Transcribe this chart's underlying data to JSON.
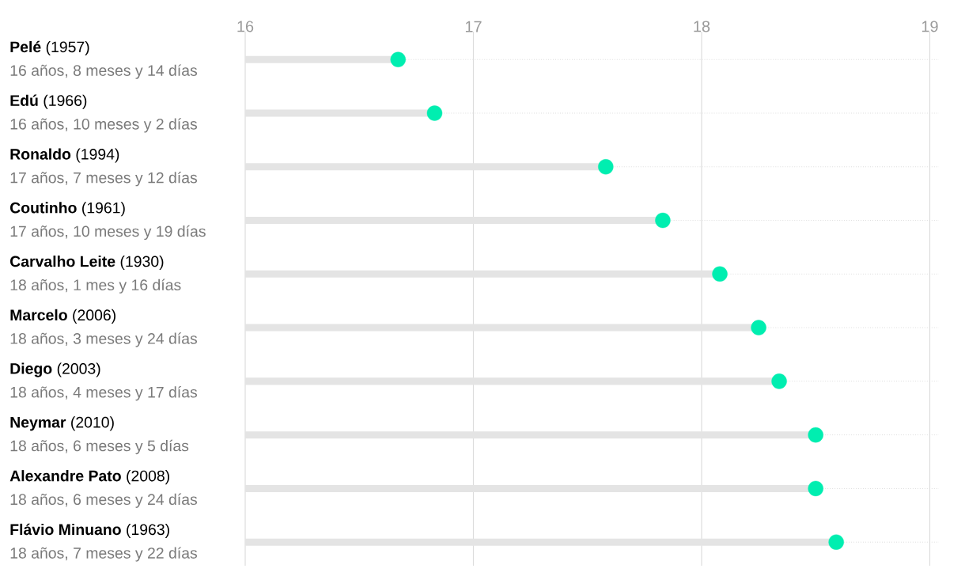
{
  "chart_data": {
    "type": "lollipop",
    "orientation": "horizontal",
    "categories": [
      "**Pelé** (1957)",
      "**Edú** (1966)",
      "**Ronaldo** (1994)",
      "**Coutinho** (1961)",
      "**Carvalho Leite** (1930)",
      "**Marcelo** (2006)",
      "**Diego** (2003)",
      "**Neymar** (2010)",
      "**Alexandre Pato** (2008)",
      "**Flávio Minuano** (1963)"
    ],
    "values": [
      16.67,
      16.83,
      17.58,
      17.83,
      18.08,
      18.25,
      18.34,
      18.5,
      18.5,
      18.59
    ],
    "annotations": [
      "16 años, 8 meses y 14 días",
      "16 años, 10 meses y 2 días",
      "17 años, 7 meses y 12 días",
      "17 años, 10 meses y 19 días",
      "18 años, 1 mes y 16 días",
      "18 años, 3 meses y 24 días",
      "18 años, 4 meses y 17 días",
      "18 años, 6 meses y 5 días",
      "18 años, 6 meses y 24 días",
      "18 años, 7 meses y 22 días"
    ],
    "color": "#00eeb0",
    "xlim": [
      16,
      19.04
    ],
    "xticks": [
      16,
      17,
      18,
      19
    ],
    "grid": true
  }
}
